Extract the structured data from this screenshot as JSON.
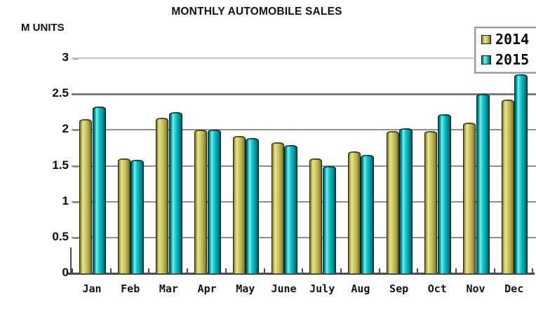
{
  "title": "MONTHLY AUTOMOBILE SALES",
  "y_axis_title": "M UNITS",
  "legend": {
    "items": [
      {
        "label": "2014",
        "swatch_color": "#c5bf5b"
      },
      {
        "label": "2015",
        "swatch_color": "#00b3b9"
      }
    ]
  },
  "colors": {
    "series_2014": "#c5bf5b",
    "series_2015": "#00b3b9",
    "gridline": "#8f8f8f",
    "axis": "#4a4a4a",
    "text": "#111111",
    "background": "#ffffff"
  },
  "chart_data": {
    "type": "bar",
    "title": "MONTHLY AUTOMOBILE SALES",
    "xlabel": "",
    "ylabel": "M UNITS",
    "categories": [
      "Jan",
      "Feb",
      "Mar",
      "Apr",
      "May",
      "June",
      "July",
      "Aug",
      "Sep",
      "Oct",
      "Nov",
      "Dec"
    ],
    "series": [
      {
        "name": "2014",
        "color": "#c5bf5b",
        "values": [
          2.15,
          1.6,
          2.17,
          2.0,
          1.92,
          1.83,
          1.6,
          1.7,
          1.98,
          1.98,
          2.1,
          2.42
        ]
      },
      {
        "name": "2015",
        "color": "#00b3b9",
        "values": [
          2.33,
          1.58,
          2.25,
          2.0,
          1.89,
          1.79,
          1.5,
          1.65,
          2.02,
          2.22,
          2.5,
          2.78
        ]
      }
    ],
    "ylim": [
      0,
      3
    ],
    "yticks": [
      0,
      0.5,
      1,
      1.5,
      2,
      2.5,
      3
    ],
    "ytick_labels": [
      "0",
      "0.5",
      "1",
      "1.5",
      "2",
      "2.5",
      "3"
    ],
    "grid": true,
    "legend_position": "top-right"
  }
}
